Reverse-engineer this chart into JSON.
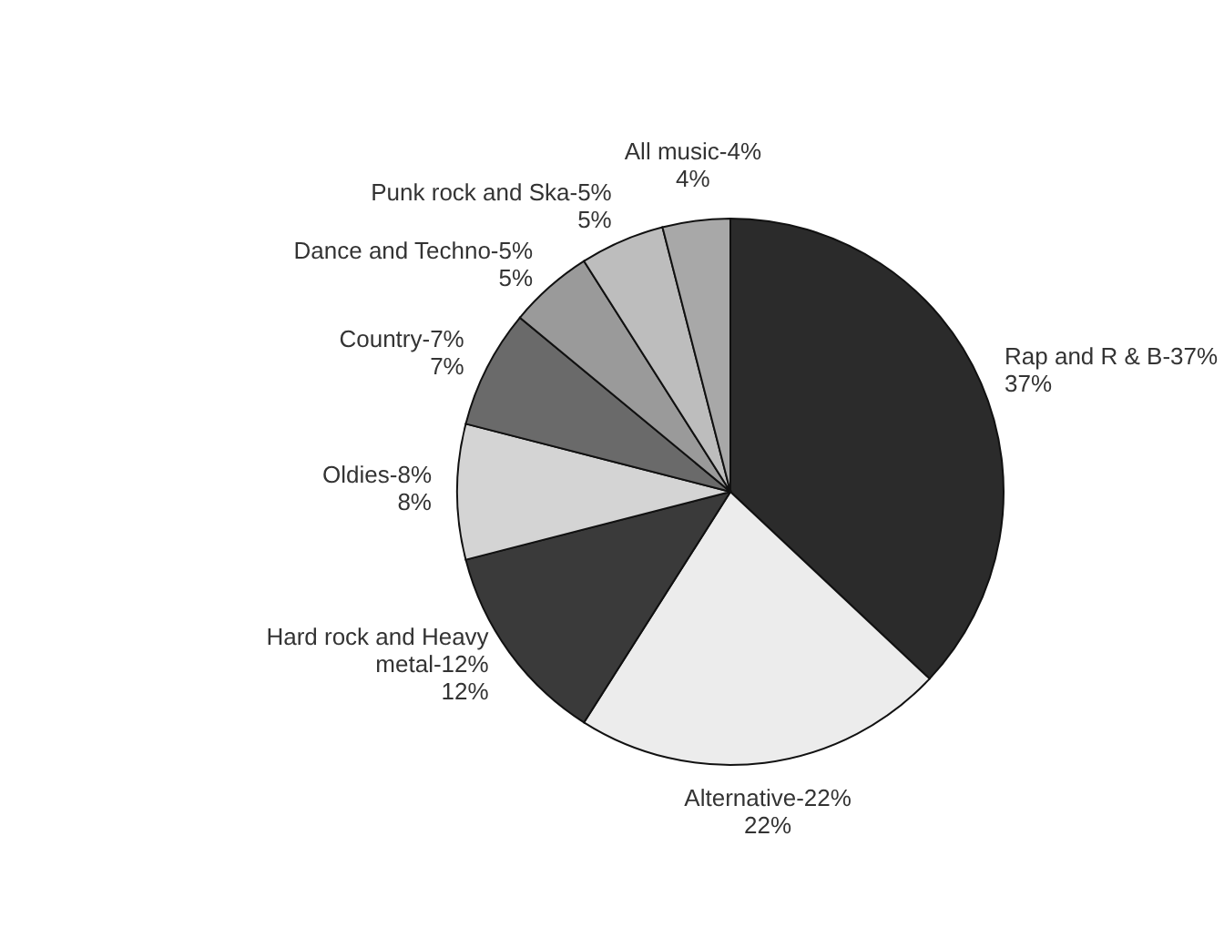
{
  "chart_data": {
    "type": "pie",
    "categories": [
      "Rap and R & B-37%",
      "Alternative-22%",
      "Hard rock and Heavy metal-12%",
      "Oldies-8%",
      "Country-7%",
      "Dance and Techno-5%",
      "Punk rock and Ska-5%",
      "All music-4%"
    ],
    "values": [
      37,
      22,
      12,
      8,
      7,
      5,
      5,
      4
    ],
    "value_labels": [
      "37%",
      "22%",
      "12%",
      "8%",
      "7%",
      "5%",
      "5%",
      "4%"
    ],
    "colors": [
      "#2b2b2b",
      "#ececec",
      "#3a3a3a",
      "#d4d4d4",
      "#6a6a6a",
      "#9a9a9a",
      "#bdbdbd",
      "#a8a8a8"
    ],
    "legend": false
  }
}
